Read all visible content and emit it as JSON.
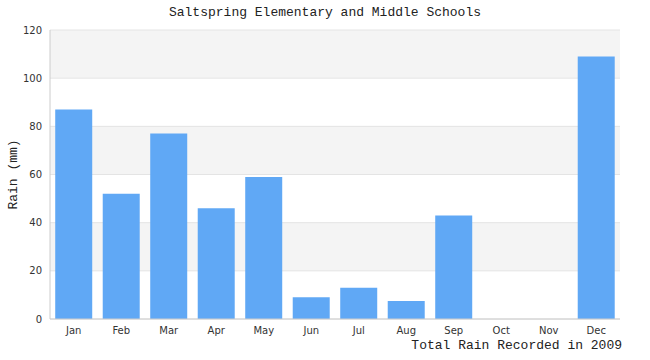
{
  "chart_data": {
    "type": "bar",
    "title": "Saltspring Elementary and Middle Schools",
    "x_label": "Total Rain Recorded in 2009",
    "y_label": "Rain (mm)",
    "categories": [
      "Jan",
      "Feb",
      "Mar",
      "Apr",
      "May",
      "Jun",
      "Jul",
      "Aug",
      "Sep",
      "Oct",
      "Nov",
      "Dec"
    ],
    "values": [
      87,
      52,
      77,
      46,
      59,
      9,
      13,
      7.5,
      43,
      0,
      0,
      109
    ],
    "color": "#60a8f5",
    "ylim": [
      0,
      120
    ],
    "yticks": [
      0,
      20,
      40,
      60,
      80,
      100,
      120
    ],
    "grid": true
  }
}
